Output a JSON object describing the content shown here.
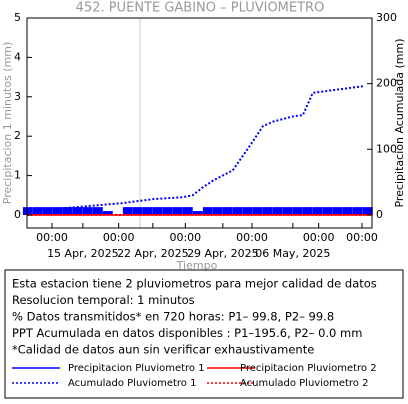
{
  "chart_data": {
    "type": "line",
    "title": "452. PUENTE GABINO – PLUVIOMETRO",
    "xlabel": "Tiempo",
    "ylabel": "Precipitacion 1 minutos (mm)",
    "y2label": "Precipitacion Acumulada (mm)",
    "xlim": [
      "2025-04-09T10:00",
      "2025-05-13T22:00"
    ],
    "xticks": [
      {
        "value": "2025-04-11T22:00",
        "label": "00:00"
      },
      {
        "value": "2025-04-15T00:00",
        "label": "15 Apr, 2025"
      },
      {
        "value": "2025-04-18T14:00",
        "label": "00:00"
      },
      {
        "value": "2025-04-22T00:00",
        "label": "22 Apr, 2025"
      },
      {
        "value": "2025-04-25T06:00",
        "label": "00:00"
      },
      {
        "value": "2025-04-29T00:00",
        "label": "29 Apr, 2025"
      },
      {
        "value": "2025-05-01T22:00",
        "label": "00:00"
      },
      {
        "value": "2025-05-06T00:00",
        "label": "06 May, 2025"
      },
      {
        "value": "2025-05-08T14:00",
        "label": "00:00"
      },
      {
        "value": "2025-05-12T22:00",
        "label": "00:00"
      }
    ],
    "ylim": [
      -0.33,
      5
    ],
    "yticks": [
      0,
      1,
      2,
      3,
      4,
      5
    ],
    "y2lim": [
      -20,
      300
    ],
    "y2ticks": [
      0,
      100,
      200,
      300
    ],
    "series": [
      {
        "name": "Precipitacion Pluviometro 1",
        "color": "#0000ff",
        "style": "spikes",
        "x": [
          "2025-04-09T12:00",
          "2025-04-10T12:00",
          "2025-04-11T12:00",
          "2025-04-12T12:00",
          "2025-04-13T12:00",
          "2025-04-14T12:00",
          "2025-04-15T12:00",
          "2025-04-16T12:00",
          "2025-04-17T12:00",
          "2025-04-18T12:00",
          "2025-04-19T12:00",
          "2025-04-20T12:00",
          "2025-04-21T12:00",
          "2025-04-22T12:00",
          "2025-04-23T12:00",
          "2025-04-24T12:00",
          "2025-04-25T12:00",
          "2025-04-26T12:00",
          "2025-04-27T12:00",
          "2025-04-28T12:00",
          "2025-04-29T12:00",
          "2025-04-30T12:00",
          "2025-05-01T12:00",
          "2025-05-02T12:00",
          "2025-05-03T12:00",
          "2025-05-04T12:00",
          "2025-05-05T12:00",
          "2025-05-06T12:00",
          "2025-05-07T12:00",
          "2025-05-08T12:00",
          "2025-05-09T12:00",
          "2025-05-10T12:00",
          "2025-05-11T12:00",
          "2025-05-12T12:00",
          "2025-05-13T12:00"
        ],
        "values": [
          0.2,
          0.2,
          0.2,
          0.2,
          0.2,
          0.2,
          0.2,
          0.2,
          0.1,
          0,
          0.2,
          0.2,
          0.2,
          0.2,
          0.2,
          0.2,
          0.2,
          0.1,
          0.2,
          0.2,
          0.2,
          0.2,
          0.2,
          0.2,
          0.2,
          0.2,
          0.2,
          0.2,
          0.2,
          0.2,
          0.2,
          0.2,
          0.2,
          0.2,
          0.2
        ]
      },
      {
        "name": "Precipitacion Pluviometro 2",
        "color": "#ff0000",
        "style": "solid",
        "x": [
          "2025-04-09T10:00",
          "2025-05-13T22:00"
        ],
        "values": [
          0,
          0
        ]
      },
      {
        "name": "Acumulado Pluviometro 1",
        "color": "#0000ff",
        "style": "dotted",
        "axis": "y2",
        "x": [
          "2025-04-10T00:00",
          "2025-04-13T00:00",
          "2025-04-16T00:00",
          "2025-04-19T00:00",
          "2025-04-22T00:00",
          "2025-04-25T00:00",
          "2025-04-26T00:00",
          "2025-04-27T00:00",
          "2025-04-28T00:00",
          "2025-04-29T00:00",
          "2025-04-30T00:00",
          "2025-05-01T00:00",
          "2025-05-02T00:00",
          "2025-05-03T00:00",
          "2025-05-04T00:00",
          "2025-05-05T00:00",
          "2025-05-06T00:00",
          "2025-05-07T00:00",
          "2025-05-08T00:00",
          "2025-05-10T00:00",
          "2025-05-12T00:00",
          "2025-05-13T00:00"
        ],
        "values": [
          8,
          10,
          14,
          18,
          24,
          27,
          30,
          42,
          52,
          60,
          68,
          90,
          112,
          135,
          142,
          146,
          150,
          152,
          186,
          190,
          194,
          196
        ]
      },
      {
        "name": "Acumulado Pluviometro 2",
        "color": "#ff0000",
        "style": "dotted",
        "axis": "y2",
        "x": [
          "2025-04-09T10:00",
          "2025-05-13T22:00"
        ],
        "values": [
          0,
          0
        ]
      }
    ]
  },
  "info_lines": [
    "Esta estacion tiene 2 pluviometros para mejor calidad de datos",
    "Resolucion temporal: 1 minutos",
    "% Datos transmitidos* en 720 horas: P1– 99.8, P2– 99.8",
    "PPT Acumulada en datos disponibles : P1–195.6, P2–  0.0 mm",
    "*Calidad de datos aun sin verificar exhaustivamente"
  ]
}
